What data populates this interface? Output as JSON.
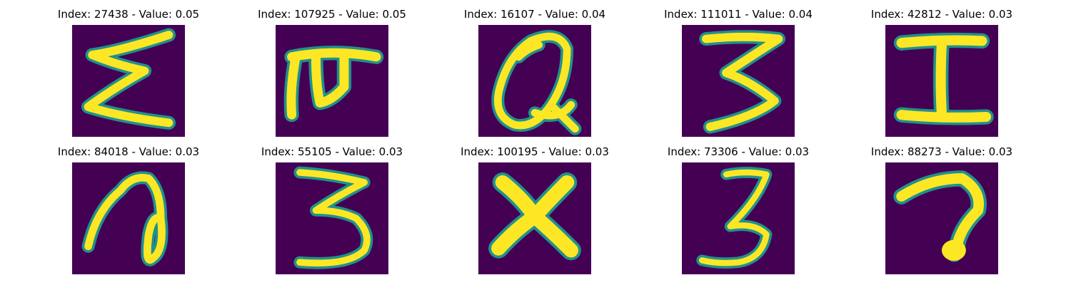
{
  "colors": {
    "background": "#440154",
    "stroke": "#fde725",
    "edge": "#35b779",
    "mid": "#21918c"
  },
  "panels": [
    {
      "title": "Index: 27438 - Value: 0.05",
      "index": 27438,
      "value": 0.05
    },
    {
      "title": "Index: 107925 - Value: 0.05",
      "index": 107925,
      "value": 0.05
    },
    {
      "title": "Index: 16107 - Value: 0.04",
      "index": 16107,
      "value": 0.04
    },
    {
      "title": "Index: 111011 - Value: 0.04",
      "index": 111011,
      "value": 0.04
    },
    {
      "title": "Index: 42812 - Value: 0.03",
      "index": 42812,
      "value": 0.03
    },
    {
      "title": "Index: 84018 - Value: 0.03",
      "index": 84018,
      "value": 0.03
    },
    {
      "title": "Index: 55105 - Value: 0.03",
      "index": 55105,
      "value": 0.03
    },
    {
      "title": "Index: 100195 - Value: 0.03",
      "index": 100195,
      "value": 0.03
    },
    {
      "title": "Index: 73306 - Value: 0.03",
      "index": 73306,
      "value": 0.03
    },
    {
      "title": "Index: 88273 - Value: 0.03",
      "index": 88273,
      "value": 0.03
    }
  ]
}
